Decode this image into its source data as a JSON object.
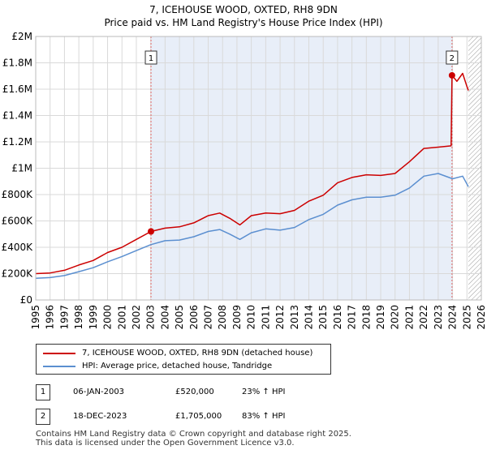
{
  "chart_data": {
    "type": "line",
    "title": "7, ICEHOUSE WOOD, OXTED, RH8 9DN",
    "subtitle": "Price paid vs. HM Land Registry's House Price Index (HPI)",
    "xlim": [
      1995,
      2026
    ],
    "ylim": [
      0,
      2000000
    ],
    "x_ticks": [
      "1995",
      "1996",
      "1997",
      "1998",
      "1999",
      "2000",
      "2001",
      "2002",
      "2003",
      "2004",
      "2005",
      "2006",
      "2007",
      "2008",
      "2009",
      "2010",
      "2011",
      "2012",
      "2013",
      "2014",
      "2015",
      "2016",
      "2017",
      "2018",
      "2019",
      "2020",
      "2021",
      "2022",
      "2023",
      "2024",
      "2025",
      "2026"
    ],
    "y_ticks": [
      {
        "value": 0,
        "label": "£0"
      },
      {
        "value": 200000,
        "label": "£200K"
      },
      {
        "value": 400000,
        "label": "£400K"
      },
      {
        "value": 600000,
        "label": "£600K"
      },
      {
        "value": 800000,
        "label": "£800K"
      },
      {
        "value": 1000000,
        "label": "£1M"
      },
      {
        "value": 1200000,
        "label": "£1.2M"
      },
      {
        "value": 1400000,
        "label": "£1.4M"
      },
      {
        "value": 1600000,
        "label": "£1.6M"
      },
      {
        "value": 1800000,
        "label": "£1.8M"
      },
      {
        "value": 2000000,
        "label": "£2M"
      }
    ],
    "grid": true,
    "shaded_range": [
      2003.02,
      2023.96
    ],
    "hatched_range": [
      2025.1,
      2026
    ],
    "series": [
      {
        "name": "7, ICEHOUSE WOOD, OXTED, RH8 9DN (detached house)",
        "color": "#cc0000",
        "points": [
          [
            1995.0,
            200000
          ],
          [
            1996.0,
            205000
          ],
          [
            1997.0,
            225000
          ],
          [
            1998.0,
            265000
          ],
          [
            1999.0,
            300000
          ],
          [
            2000.0,
            360000
          ],
          [
            2001.0,
            400000
          ],
          [
            2002.0,
            460000
          ],
          [
            2003.02,
            520000
          ],
          [
            2004.0,
            545000
          ],
          [
            2005.0,
            555000
          ],
          [
            2006.0,
            585000
          ],
          [
            2007.0,
            640000
          ],
          [
            2007.8,
            660000
          ],
          [
            2008.5,
            620000
          ],
          [
            2009.2,
            570000
          ],
          [
            2010.0,
            640000
          ],
          [
            2011.0,
            660000
          ],
          [
            2012.0,
            655000
          ],
          [
            2013.0,
            680000
          ],
          [
            2014.0,
            750000
          ],
          [
            2015.0,
            795000
          ],
          [
            2016.0,
            890000
          ],
          [
            2017.0,
            930000
          ],
          [
            2018.0,
            950000
          ],
          [
            2019.0,
            945000
          ],
          [
            2020.0,
            960000
          ],
          [
            2021.0,
            1050000
          ],
          [
            2022.0,
            1150000
          ],
          [
            2023.0,
            1160000
          ],
          [
            2023.9,
            1170000
          ],
          [
            2023.96,
            1705000
          ],
          [
            2024.3,
            1660000
          ],
          [
            2024.7,
            1720000
          ],
          [
            2025.0,
            1620000
          ],
          [
            2025.1,
            1590000
          ]
        ]
      },
      {
        "name": "HPI: Average price, detached house, Tandridge",
        "color": "#5b8fd0",
        "points": [
          [
            1995.0,
            165000
          ],
          [
            1996.0,
            170000
          ],
          [
            1997.0,
            185000
          ],
          [
            1998.0,
            215000
          ],
          [
            1999.0,
            245000
          ],
          [
            2000.0,
            290000
          ],
          [
            2001.0,
            330000
          ],
          [
            2002.0,
            375000
          ],
          [
            2003.0,
            420000
          ],
          [
            2004.0,
            450000
          ],
          [
            2005.0,
            455000
          ],
          [
            2006.0,
            480000
          ],
          [
            2007.0,
            520000
          ],
          [
            2007.8,
            535000
          ],
          [
            2008.5,
            500000
          ],
          [
            2009.2,
            460000
          ],
          [
            2010.0,
            510000
          ],
          [
            2011.0,
            540000
          ],
          [
            2012.0,
            530000
          ],
          [
            2013.0,
            550000
          ],
          [
            2014.0,
            610000
          ],
          [
            2015.0,
            650000
          ],
          [
            2016.0,
            720000
          ],
          [
            2017.0,
            760000
          ],
          [
            2018.0,
            780000
          ],
          [
            2019.0,
            780000
          ],
          [
            2020.0,
            795000
          ],
          [
            2021.0,
            850000
          ],
          [
            2022.0,
            940000
          ],
          [
            2023.0,
            960000
          ],
          [
            2024.0,
            920000
          ],
          [
            2024.7,
            940000
          ],
          [
            2025.1,
            860000
          ]
        ]
      }
    ],
    "markers": [
      {
        "label": "1",
        "x": 2003.02,
        "y": 520000
      },
      {
        "label": "2",
        "x": 2023.96,
        "y": 1705000
      }
    ]
  },
  "legend": [
    {
      "label": "7, ICEHOUSE WOOD, OXTED, RH8 9DN (detached house)",
      "color": "#cc0000"
    },
    {
      "label": "HPI: Average price, detached house, Tandridge",
      "color": "#5b8fd0"
    }
  ],
  "sales": [
    {
      "num": "1",
      "date": "06-JAN-2003",
      "price": "£520,000",
      "hpi": "23% ↑ HPI"
    },
    {
      "num": "2",
      "date": "18-DEC-2023",
      "price": "£1,705,000",
      "hpi": "83% ↑ HPI"
    }
  ],
  "footer": "Contains HM Land Registry data © Crown copyright and database right 2025.\nThis data is licensed under the Open Government Licence v3.0."
}
